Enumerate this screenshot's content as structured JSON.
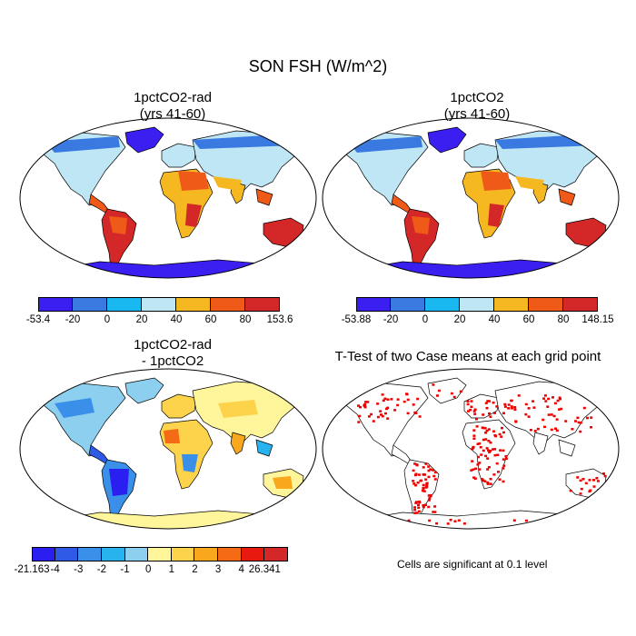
{
  "title": "SON FSH (W/m^2)",
  "panels": [
    {
      "id": "p1",
      "title_line1": "1pctCO2-rad",
      "title_line2": "(yrs 41-60)",
      "colorbar": {
        "colors": [
          "#3b1ff0",
          "#3a7ae0",
          "#1ab8f0",
          "#bfe6f5",
          "#f5b820",
          "#f05a18",
          "#d42828"
        ],
        "labels": [
          "-53.4",
          "-20",
          "0",
          "20",
          "40",
          "60",
          "80",
          "153.6"
        ]
      }
    },
    {
      "id": "p2",
      "title_line1": "1pctCO2",
      "title_line2": "(yrs 41-60)",
      "colorbar": {
        "colors": [
          "#3b1ff0",
          "#3a7ae0",
          "#1ab8f0",
          "#bfe6f5",
          "#f5b820",
          "#f05a18",
          "#d42828"
        ],
        "labels": [
          "-53.88",
          "-20",
          "0",
          "20",
          "40",
          "60",
          "80",
          "148.15"
        ]
      }
    },
    {
      "id": "p3",
      "title_line1": "1pctCO2-rad",
      "title_line2": "- 1pctCO2",
      "colorbar": {
        "colors": [
          "#2a1ff0",
          "#2f5ae8",
          "#3a8fe8",
          "#29b3ee",
          "#8ccfef",
          "#fff59a",
          "#fcd34a",
          "#f9a71c",
          "#f56a14",
          "#e81a10",
          "#d42828"
        ],
        "labels": [
          "-21.163",
          "-4",
          "-3",
          "-2",
          "-1",
          "0",
          "1",
          "2",
          "3",
          "4",
          "26.341"
        ]
      }
    },
    {
      "id": "p4",
      "title_line1": "T-Test of two Case means at each grid point",
      "title_line2": "",
      "note": "Cells are significant at 0.1 level",
      "sig_color": "#ee0000"
    }
  ]
}
